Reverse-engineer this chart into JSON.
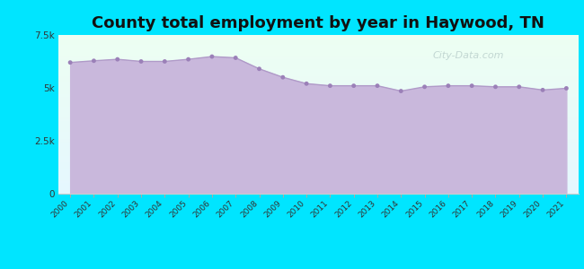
{
  "title": "County total employment by year in Haywood, TN",
  "years": [
    2000,
    2001,
    2002,
    2003,
    2004,
    2005,
    2006,
    2007,
    2008,
    2009,
    2010,
    2011,
    2012,
    2013,
    2014,
    2015,
    2016,
    2017,
    2018,
    2019,
    2020,
    2021
  ],
  "values": [
    6200,
    6280,
    6350,
    6250,
    6250,
    6350,
    6480,
    6420,
    5900,
    5500,
    5200,
    5100,
    5100,
    5100,
    4850,
    5050,
    5100,
    5100,
    5050,
    5050,
    4900,
    4980
  ],
  "line_color": "#b09ac8",
  "fill_color": "#c9b8dc",
  "fill_alpha": 1.0,
  "marker_color": "#9b80b8",
  "marker_size": 3.5,
  "plot_bg_top": "#eefff4",
  "plot_bg_bottom": "#e8f4ff",
  "outer_bg_color": "#00e5ff",
  "ylim": [
    0,
    7500
  ],
  "yticks": [
    0,
    2500,
    5000,
    7500
  ],
  "ytick_labels": [
    "0",
    "2.5k",
    "5k",
    "7.5k"
  ],
  "title_fontsize": 13,
  "title_color": "#111111",
  "watermark_text": "City-Data.com",
  "watermark_color": "#a0b8b8",
  "watermark_alpha": 0.55
}
